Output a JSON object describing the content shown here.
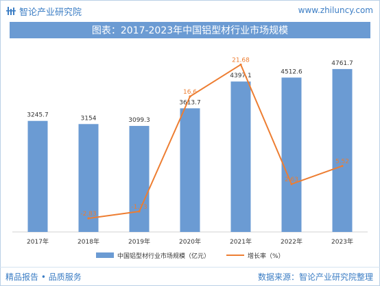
{
  "header": {
    "brand": "智论产业研究院",
    "site": "www.zhiluncy.com",
    "title": "图表：2017-2023年中国铝型材行业市场规模"
  },
  "footer": {
    "left": "精品报告 • 品质服务",
    "right": "数据来源：智论产业研究院整理"
  },
  "colors": {
    "bar": "#6b9bd3",
    "line": "#ed7d31",
    "brand": "#3b7dc4"
  },
  "chart_data": {
    "type": "bar",
    "categories": [
      "2017年",
      "2018年",
      "2019年",
      "2020年",
      "2021年",
      "2022年",
      "2023年"
    ],
    "series": [
      {
        "name": "中国铝型材行业市场规模（亿元）",
        "type": "bar",
        "axis": "left",
        "values": [
          3245.7,
          3154,
          3099.3,
          3613.7,
          4397.1,
          4512.6,
          4761.7
        ],
        "labels": [
          "3245.7",
          "3154",
          "3099.3",
          "3613.7",
          "4397.1",
          "4512.6",
          "4761.7"
        ]
      },
      {
        "name": "增长率（%）",
        "type": "line",
        "axis": "right",
        "values": [
          null,
          -2.83,
          -1.73,
          16.6,
          21.68,
          2.63,
          5.52
        ],
        "labels": [
          "",
          "-2.83",
          "-1.73",
          "16.6",
          "21.68",
          "2.63",
          "5.52"
        ]
      }
    ],
    "ylim": [
      0,
      5500
    ],
    "y2lim": [
      -5,
      25
    ],
    "legend": "bottom",
    "grid": false
  }
}
